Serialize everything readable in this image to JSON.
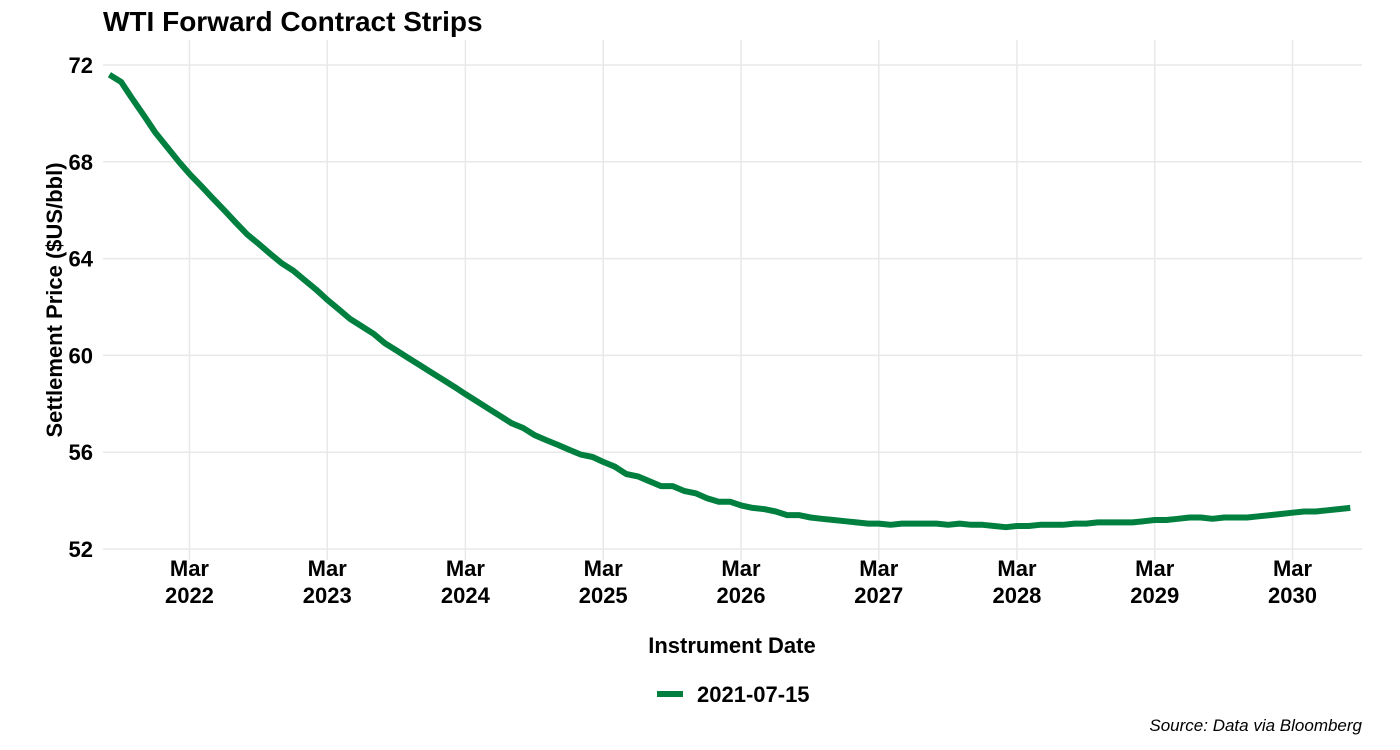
{
  "chart_data": {
    "type": "line",
    "title": "WTI Forward Contract Strips",
    "xlabel": "Instrument Date",
    "ylabel": "Settlement Price ($US/bbl)",
    "source": "Source: Data via Bloomberg",
    "ylim": [
      52,
      72
    ],
    "yticks": [
      52,
      56,
      60,
      64,
      68,
      72
    ],
    "xlim": [
      "2021-07-15",
      "2030-09-01"
    ],
    "xticks": [
      {
        "date": "2022-03-01",
        "month": "Mar",
        "year": "2022"
      },
      {
        "date": "2023-03-01",
        "month": "Mar",
        "year": "2023"
      },
      {
        "date": "2024-03-01",
        "month": "Mar",
        "year": "2024"
      },
      {
        "date": "2025-03-01",
        "month": "Mar",
        "year": "2025"
      },
      {
        "date": "2026-03-01",
        "month": "Mar",
        "year": "2026"
      },
      {
        "date": "2027-03-01",
        "month": "Mar",
        "year": "2027"
      },
      {
        "date": "2028-03-01",
        "month": "Mar",
        "year": "2028"
      },
      {
        "date": "2029-03-01",
        "month": "Mar",
        "year": "2029"
      },
      {
        "date": "2030-03-01",
        "month": "Mar",
        "year": "2030"
      }
    ],
    "grid": true,
    "legend_position": "bottom",
    "series": [
      {
        "name": "2021-07-15",
        "color": "#007f3f",
        "points": [
          [
            "2021-08-01",
            71.6
          ],
          [
            "2021-09-01",
            71.3
          ],
          [
            "2021-10-01",
            70.6
          ],
          [
            "2021-11-01",
            69.9
          ],
          [
            "2021-12-01",
            69.2
          ],
          [
            "2022-01-01",
            68.6
          ],
          [
            "2022-02-01",
            68.0
          ],
          [
            "2022-03-01",
            67.5
          ],
          [
            "2022-04-01",
            67.0
          ],
          [
            "2022-05-01",
            66.5
          ],
          [
            "2022-06-01",
            66.0
          ],
          [
            "2022-07-01",
            65.5
          ],
          [
            "2022-08-01",
            65.0
          ],
          [
            "2022-09-01",
            64.6
          ],
          [
            "2022-10-01",
            64.2
          ],
          [
            "2022-11-01",
            63.8
          ],
          [
            "2022-12-01",
            63.5
          ],
          [
            "2023-01-01",
            63.1
          ],
          [
            "2023-02-01",
            62.7
          ],
          [
            "2023-03-01",
            62.3
          ],
          [
            "2023-04-01",
            61.9
          ],
          [
            "2023-05-01",
            61.5
          ],
          [
            "2023-06-01",
            61.2
          ],
          [
            "2023-07-01",
            60.9
          ],
          [
            "2023-08-01",
            60.5
          ],
          [
            "2023-09-01",
            60.2
          ],
          [
            "2023-10-01",
            59.9
          ],
          [
            "2023-11-01",
            59.6
          ],
          [
            "2023-12-01",
            59.3
          ],
          [
            "2024-01-01",
            59.0
          ],
          [
            "2024-02-01",
            58.7
          ],
          [
            "2024-03-01",
            58.4
          ],
          [
            "2024-04-01",
            58.1
          ],
          [
            "2024-05-01",
            57.8
          ],
          [
            "2024-06-01",
            57.5
          ],
          [
            "2024-07-01",
            57.2
          ],
          [
            "2024-08-01",
            57.0
          ],
          [
            "2024-09-01",
            56.7
          ],
          [
            "2024-10-01",
            56.5
          ],
          [
            "2024-11-01",
            56.3
          ],
          [
            "2024-12-01",
            56.1
          ],
          [
            "2025-01-01",
            55.9
          ],
          [
            "2025-02-01",
            55.8
          ],
          [
            "2025-03-01",
            55.6
          ],
          [
            "2025-04-01",
            55.4
          ],
          [
            "2025-05-01",
            55.1
          ],
          [
            "2025-06-01",
            55.0
          ],
          [
            "2025-07-01",
            54.8
          ],
          [
            "2025-08-01",
            54.6
          ],
          [
            "2025-09-01",
            54.6
          ],
          [
            "2025-10-01",
            54.4
          ],
          [
            "2025-11-01",
            54.3
          ],
          [
            "2025-12-01",
            54.1
          ],
          [
            "2026-01-01",
            53.95
          ],
          [
            "2026-02-01",
            53.95
          ],
          [
            "2026-03-01",
            53.8
          ],
          [
            "2026-04-01",
            53.7
          ],
          [
            "2026-05-01",
            53.65
          ],
          [
            "2026-06-01",
            53.55
          ],
          [
            "2026-07-01",
            53.4
          ],
          [
            "2026-08-01",
            53.4
          ],
          [
            "2026-09-01",
            53.3
          ],
          [
            "2026-10-01",
            53.25
          ],
          [
            "2026-11-01",
            53.2
          ],
          [
            "2026-12-01",
            53.15
          ],
          [
            "2027-01-01",
            53.1
          ],
          [
            "2027-02-01",
            53.05
          ],
          [
            "2027-03-01",
            53.05
          ],
          [
            "2027-04-01",
            53.0
          ],
          [
            "2027-05-01",
            53.05
          ],
          [
            "2027-06-01",
            53.05
          ],
          [
            "2027-07-01",
            53.05
          ],
          [
            "2027-08-01",
            53.05
          ],
          [
            "2027-09-01",
            53.0
          ],
          [
            "2027-10-01",
            53.05
          ],
          [
            "2027-11-01",
            53.0
          ],
          [
            "2027-12-01",
            53.0
          ],
          [
            "2028-01-01",
            52.95
          ],
          [
            "2028-02-01",
            52.9
          ],
          [
            "2028-03-01",
            52.95
          ],
          [
            "2028-04-01",
            52.95
          ],
          [
            "2028-05-01",
            53.0
          ],
          [
            "2028-06-01",
            53.0
          ],
          [
            "2028-07-01",
            53.0
          ],
          [
            "2028-08-01",
            53.05
          ],
          [
            "2028-09-01",
            53.05
          ],
          [
            "2028-10-01",
            53.1
          ],
          [
            "2028-11-01",
            53.1
          ],
          [
            "2028-12-01",
            53.1
          ],
          [
            "2029-01-01",
            53.1
          ],
          [
            "2029-02-01",
            53.15
          ],
          [
            "2029-03-01",
            53.2
          ],
          [
            "2029-04-01",
            53.2
          ],
          [
            "2029-05-01",
            53.25
          ],
          [
            "2029-06-01",
            53.3
          ],
          [
            "2029-07-01",
            53.3
          ],
          [
            "2029-08-01",
            53.25
          ],
          [
            "2029-09-01",
            53.3
          ],
          [
            "2029-10-01",
            53.3
          ],
          [
            "2029-11-01",
            53.3
          ],
          [
            "2029-12-01",
            53.35
          ],
          [
            "2030-01-01",
            53.4
          ],
          [
            "2030-02-01",
            53.45
          ],
          [
            "2030-03-01",
            53.5
          ],
          [
            "2030-04-01",
            53.55
          ],
          [
            "2030-05-01",
            53.55
          ],
          [
            "2030-06-01",
            53.6
          ],
          [
            "2030-07-01",
            53.65
          ],
          [
            "2030-08-01",
            53.7
          ]
        ]
      }
    ]
  }
}
